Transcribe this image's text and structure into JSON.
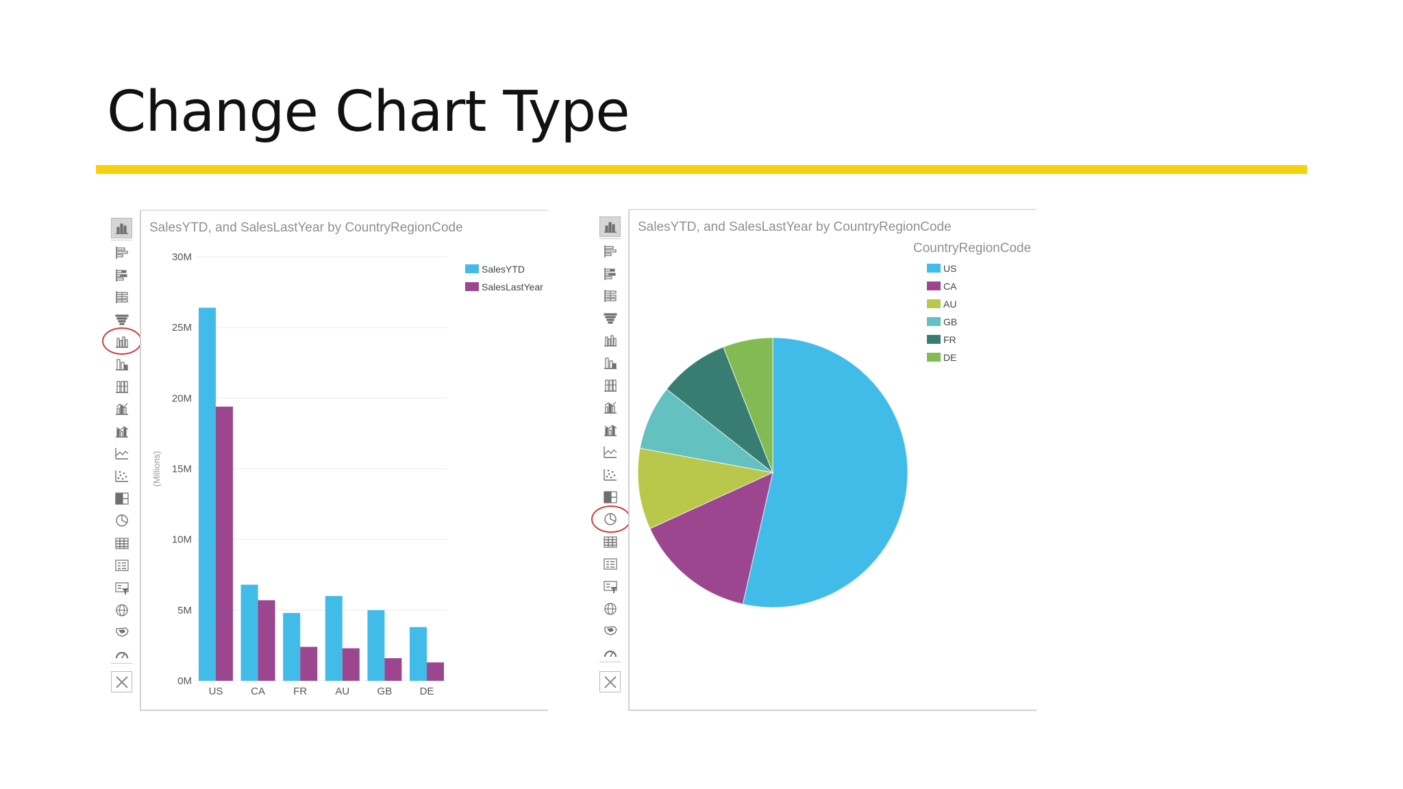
{
  "slide": {
    "title": "Change Chart Type"
  },
  "colors": {
    "accent_bar": "#f5d20f",
    "series_sales_ytd": "#41bce8",
    "series_sales_last_year": "#9c4690",
    "highlight_ring": "#d23a3a"
  },
  "toolbar_icons": [
    "bar-chart-icon",
    "clustered-bar-icon",
    "stacked-bar-icon",
    "100-stacked-bar-icon",
    "funnel-icon",
    "clustered-column-icon",
    "stacked-column-icon",
    "100-stacked-column-icon",
    "column-line-icon",
    "column-line-stacked-icon",
    "line-chart-icon",
    "scatter-chart-icon",
    "treemap-icon",
    "pie-chart-icon",
    "table-icon",
    "card-icon",
    "slicer-icon",
    "map-icon",
    "filled-map-icon",
    "gauge-icon"
  ],
  "left_panel": {
    "highlighted_tool": "clustered-column-icon",
    "chart_data": {
      "type": "bar",
      "title": "SalesYTD, and SalesLastYear by CountryRegionCode",
      "ylabel": "(Millions)",
      "xlabel": "",
      "categories": [
        "US",
        "CA",
        "FR",
        "AU",
        "GB",
        "DE"
      ],
      "series": [
        {
          "name": "SalesYTD",
          "values": [
            26.4,
            6.8,
            4.8,
            6.0,
            5.0,
            3.8
          ]
        },
        {
          "name": "SalesLastYear",
          "values": [
            19.4,
            5.7,
            2.4,
            2.3,
            1.6,
            1.3
          ]
        }
      ],
      "yticks": [
        "0M",
        "5M",
        "10M",
        "15M",
        "20M",
        "25M",
        "30M"
      ],
      "ylim": [
        0,
        30
      ],
      "grid": true,
      "legend_position": "top-right"
    }
  },
  "right_panel": {
    "highlighted_tool": "pie-chart-icon",
    "chart_data": {
      "type": "pie",
      "title": "SalesYTD, and SalesLastYear by CountryRegionCode",
      "legend_title": "CountryRegionCode",
      "legend_position": "top-right",
      "slices": [
        {
          "label": "US",
          "value": 45.8,
          "color": "#41bce8"
        },
        {
          "label": "CA",
          "value": 12.5,
          "color": "#9c4690"
        },
        {
          "label": "AU",
          "value": 8.3,
          "color": "#b9c84a"
        },
        {
          "label": "GB",
          "value": 6.6,
          "color": "#63c1c0"
        },
        {
          "label": "FR",
          "value": 7.2,
          "color": "#377d72"
        },
        {
          "label": "DE",
          "value": 5.1,
          "color": "#82bb53"
        }
      ]
    }
  }
}
